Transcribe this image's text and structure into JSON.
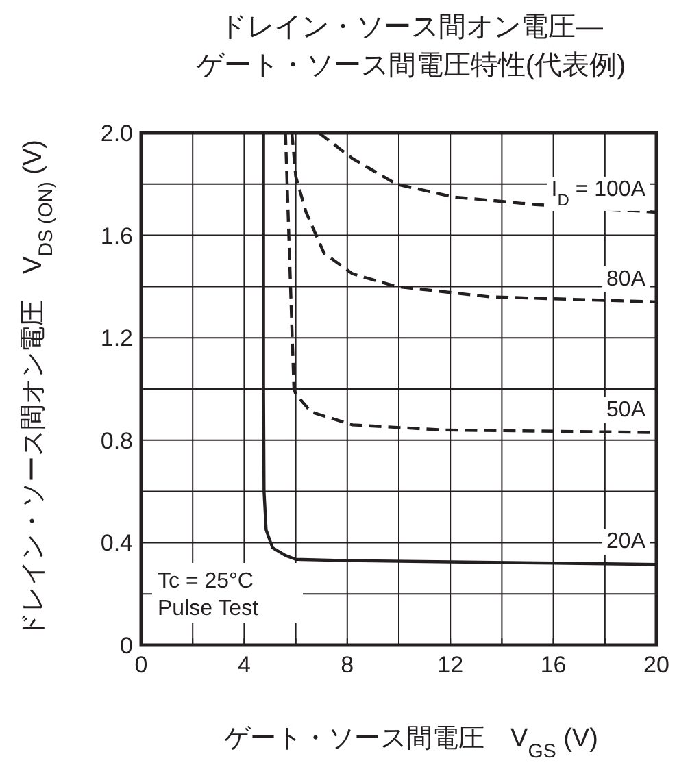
{
  "chart_data": {
    "type": "line",
    "title": "ドレイン・ソース間オン電圧—\nゲート・ソース間電圧特性(代表例)",
    "xlabel": "ゲート・ソース間電圧　V$_{GS}$ (V)",
    "ylabel": "ドレイン・ソース間オン電圧　V$_{DS (ON)}$ (V)",
    "xlim": [
      0,
      20
    ],
    "ylim": [
      0,
      2
    ],
    "xticks": [
      0,
      {
        "value": 2,
        "label": null
      },
      4,
      {
        "value": 6,
        "label": null
      },
      8,
      {
        "value": 10,
        "label": null
      },
      12,
      {
        "value": 14,
        "label": null
      },
      16,
      {
        "value": 18,
        "label": null
      },
      20
    ],
    "yticks": [
      0,
      {
        "value": 0.2,
        "label": null
      },
      0.4,
      {
        "value": 0.6,
        "label": null
      },
      0.8,
      {
        "value": 1.0,
        "label": null
      },
      1.2,
      {
        "value": 1.4,
        "label": null
      },
      1.6,
      {
        "value": 1.8,
        "label": null
      },
      {
        "value": 2,
        "label": "2.0"
      }
    ],
    "grid": true,
    "marker": "none",
    "annotations": [
      "Tc = 25°C\nPulse Test"
    ],
    "series": [
      {
        "name": "I$_{D}$ = 100A",
        "color": "#231f20",
        "line_style": "dashed",
        "x": [
          6.9,
          8.2,
          9.9,
          12.1,
          15.3,
          20
        ],
        "values": [
          2.0,
          1.9,
          1.8,
          1.75,
          1.72,
          1.69
        ]
      },
      {
        "name": "80A",
        "color": "#231f20",
        "line_style": "dashed",
        "x": [
          5.85,
          6.0,
          6.4,
          7.1,
          8.2,
          9.9,
          13.5,
          20
        ],
        "values": [
          2.0,
          1.83,
          1.69,
          1.53,
          1.45,
          1.4,
          1.36,
          1.34
        ]
      },
      {
        "name": "50A",
        "color": "#231f20",
        "line_style": "dashed",
        "x": [
          5.6,
          5.93,
          6.0,
          6.6,
          8.2,
          11.7,
          20
        ],
        "values": [
          2.0,
          1.0,
          0.98,
          0.91,
          0.86,
          0.84,
          0.83
        ]
      },
      {
        "name": "20A",
        "color": "#231f20",
        "line_style": "solid",
        "x": [
          4.75,
          4.75,
          4.77,
          4.85,
          5.1,
          5.6,
          6.0,
          8.0,
          12.0,
          16.0,
          20.0
        ],
        "values": [
          2.0,
          1.0,
          0.6,
          0.45,
          0.38,
          0.35,
          0.335,
          0.33,
          0.325,
          0.32,
          0.315
        ]
      }
    ]
  }
}
